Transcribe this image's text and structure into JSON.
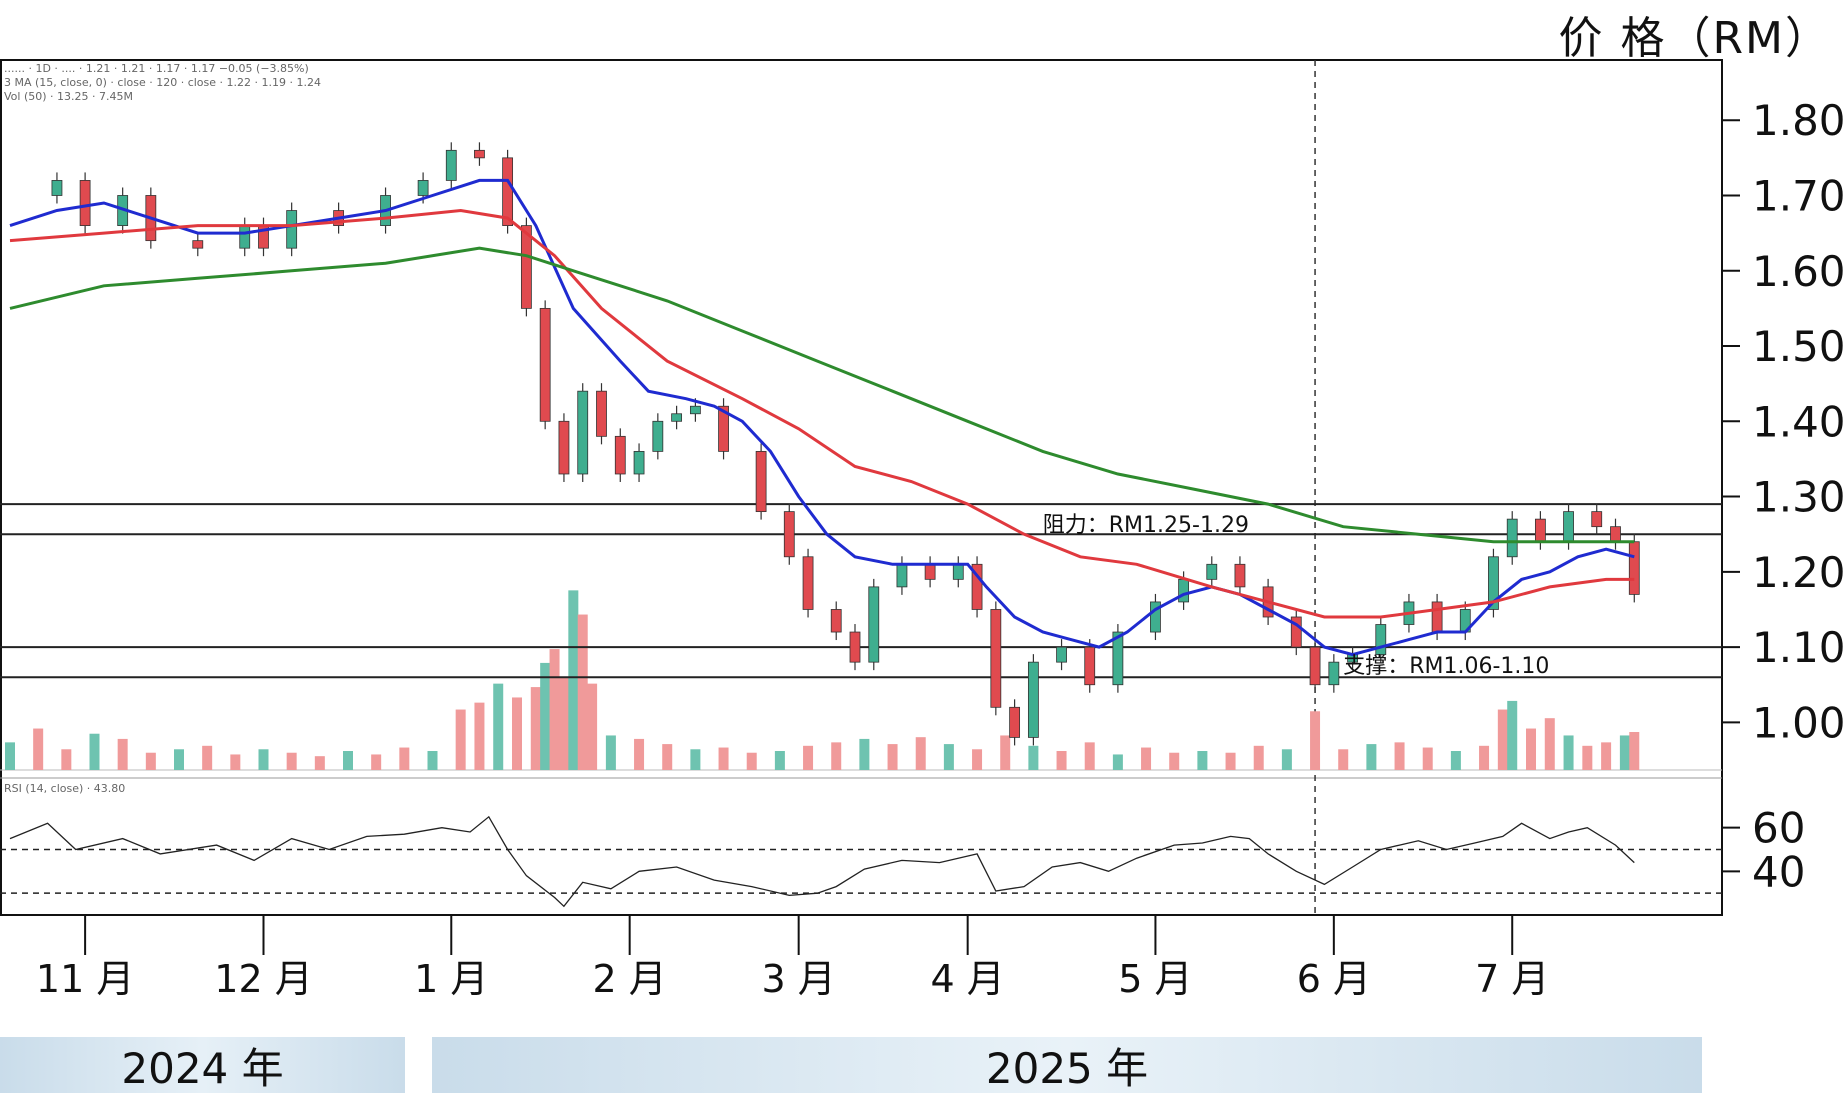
{
  "price_axis_title": "价 格（RM）",
  "years": [
    "2024 年",
    "2025 年"
  ],
  "legend": {
    "line1": "...... · 1D · .... · 1.21 · 1.21 · 1.17 · 1.17 −0.05 (−3.85%)",
    "line2": "3 MA (15, close, 0) · close · 120 · close · 1.22 · 1.19 · 1.24",
    "line3": "Vol (50) · 13.25 · 7.45M",
    "rsi": "RSI (14, close) · 43.80"
  },
  "annotations": {
    "resistance": "阻力：RM1.25-1.29",
    "support": "支撑：RM1.06-1.10"
  },
  "chart_data": {
    "type": "line",
    "title": "",
    "ylabel": "价 格（RM）",
    "xlabel": "",
    "ylim": [
      0.95,
      1.88
    ],
    "y_ticks": [
      "1.80",
      "1.70",
      "1.60",
      "1.50",
      "1.40",
      "1.30",
      "1.20",
      "1.10",
      "1.00"
    ],
    "y_tick_values": [
      1.8,
      1.7,
      1.6,
      1.5,
      1.4,
      1.3,
      1.2,
      1.1,
      1.0
    ],
    "x_ticks": [
      "11 月",
      "12 月",
      "1 月",
      "2 月",
      "3 月",
      "4 月",
      "5 月",
      "6 月",
      "7 月"
    ],
    "horizontal_levels": [
      1.29,
      1.25,
      1.1,
      1.06
    ],
    "x_range": [
      0,
      180
    ],
    "month_x": [
      8,
      27,
      47,
      66,
      84,
      102,
      122,
      141,
      160
    ],
    "close_points": [
      [
        0,
        1.7
      ],
      [
        5,
        1.72
      ],
      [
        8,
        1.66
      ],
      [
        12,
        1.7
      ],
      [
        15,
        1.64
      ],
      [
        20,
        1.63
      ],
      [
        25,
        1.66
      ],
      [
        27,
        1.63
      ],
      [
        30,
        1.68
      ],
      [
        35,
        1.66
      ],
      [
        40,
        1.7
      ],
      [
        44,
        1.72
      ],
      [
        47,
        1.76
      ],
      [
        50,
        1.75
      ],
      [
        53,
        1.66
      ],
      [
        55,
        1.55
      ],
      [
        57,
        1.4
      ],
      [
        59,
        1.33
      ],
      [
        61,
        1.44
      ],
      [
        63,
        1.38
      ],
      [
        65,
        1.33
      ],
      [
        67,
        1.36
      ],
      [
        69,
        1.4
      ],
      [
        71,
        1.41
      ],
      [
        73,
        1.42
      ],
      [
        76,
        1.36
      ],
      [
        80,
        1.28
      ],
      [
        83,
        1.22
      ],
      [
        85,
        1.15
      ],
      [
        88,
        1.12
      ],
      [
        90,
        1.08
      ],
      [
        92,
        1.18
      ],
      [
        95,
        1.21
      ],
      [
        98,
        1.19
      ],
      [
        101,
        1.21
      ],
      [
        103,
        1.15
      ],
      [
        105,
        1.02
      ],
      [
        107,
        0.98
      ],
      [
        109,
        1.08
      ],
      [
        112,
        1.1
      ],
      [
        115,
        1.05
      ],
      [
        118,
        1.12
      ],
      [
        122,
        1.16
      ],
      [
        125,
        1.19
      ],
      [
        128,
        1.21
      ],
      [
        131,
        1.18
      ],
      [
        134,
        1.14
      ],
      [
        137,
        1.1
      ],
      [
        139,
        1.05
      ],
      [
        141,
        1.08
      ],
      [
        143,
        1.09
      ],
      [
        146,
        1.13
      ],
      [
        149,
        1.16
      ],
      [
        152,
        1.12
      ],
      [
        155,
        1.15
      ],
      [
        158,
        1.22
      ],
      [
        160,
        1.27
      ],
      [
        163,
        1.24
      ],
      [
        166,
        1.28
      ],
      [
        169,
        1.26
      ],
      [
        171,
        1.24
      ],
      [
        173,
        1.17
      ]
    ],
    "series": [
      {
        "name": "MA15",
        "color": "#1f2bd0",
        "points": [
          [
            0,
            1.66
          ],
          [
            5,
            1.68
          ],
          [
            10,
            1.69
          ],
          [
            15,
            1.67
          ],
          [
            20,
            1.65
          ],
          [
            25,
            1.65
          ],
          [
            30,
            1.66
          ],
          [
            35,
            1.67
          ],
          [
            40,
            1.68
          ],
          [
            45,
            1.7
          ],
          [
            50,
            1.72
          ],
          [
            53,
            1.72
          ],
          [
            56,
            1.66
          ],
          [
            60,
            1.55
          ],
          [
            65,
            1.48
          ],
          [
            68,
            1.44
          ],
          [
            72,
            1.43
          ],
          [
            75,
            1.42
          ],
          [
            78,
            1.4
          ],
          [
            81,
            1.36
          ],
          [
            84,
            1.3
          ],
          [
            87,
            1.25
          ],
          [
            90,
            1.22
          ],
          [
            94,
            1.21
          ],
          [
            98,
            1.21
          ],
          [
            102,
            1.21
          ],
          [
            104,
            1.18
          ],
          [
            107,
            1.14
          ],
          [
            110,
            1.12
          ],
          [
            113,
            1.11
          ],
          [
            116,
            1.1
          ],
          [
            119,
            1.12
          ],
          [
            122,
            1.15
          ],
          [
            125,
            1.17
          ],
          [
            128,
            1.18
          ],
          [
            131,
            1.17
          ],
          [
            134,
            1.15
          ],
          [
            137,
            1.13
          ],
          [
            140,
            1.1
          ],
          [
            143,
            1.09
          ],
          [
            146,
            1.1
          ],
          [
            149,
            1.11
          ],
          [
            152,
            1.12
          ],
          [
            155,
            1.12
          ],
          [
            158,
            1.16
          ],
          [
            161,
            1.19
          ],
          [
            164,
            1.2
          ],
          [
            167,
            1.22
          ],
          [
            170,
            1.23
          ],
          [
            173,
            1.22
          ]
        ]
      },
      {
        "name": "MA60",
        "color": "#e0393e",
        "points": [
          [
            0,
            1.64
          ],
          [
            10,
            1.65
          ],
          [
            20,
            1.66
          ],
          [
            30,
            1.66
          ],
          [
            40,
            1.67
          ],
          [
            48,
            1.68
          ],
          [
            53,
            1.67
          ],
          [
            58,
            1.62
          ],
          [
            63,
            1.55
          ],
          [
            70,
            1.48
          ],
          [
            78,
            1.43
          ],
          [
            84,
            1.39
          ],
          [
            90,
            1.34
          ],
          [
            96,
            1.32
          ],
          [
            102,
            1.29
          ],
          [
            108,
            1.25
          ],
          [
            114,
            1.22
          ],
          [
            120,
            1.21
          ],
          [
            128,
            1.18
          ],
          [
            134,
            1.16
          ],
          [
            140,
            1.14
          ],
          [
            146,
            1.14
          ],
          [
            152,
            1.15
          ],
          [
            158,
            1.16
          ],
          [
            164,
            1.18
          ],
          [
            170,
            1.19
          ],
          [
            173,
            1.19
          ]
        ]
      },
      {
        "name": "MA120",
        "color": "#2e8b2e",
        "points": [
          [
            0,
            1.55
          ],
          [
            10,
            1.58
          ],
          [
            20,
            1.59
          ],
          [
            30,
            1.6
          ],
          [
            40,
            1.61
          ],
          [
            50,
            1.63
          ],
          [
            55,
            1.62
          ],
          [
            60,
            1.6
          ],
          [
            65,
            1.58
          ],
          [
            70,
            1.56
          ],
          [
            78,
            1.52
          ],
          [
            86,
            1.48
          ],
          [
            94,
            1.44
          ],
          [
            102,
            1.4
          ],
          [
            110,
            1.36
          ],
          [
            118,
            1.33
          ],
          [
            126,
            1.31
          ],
          [
            134,
            1.29
          ],
          [
            142,
            1.26
          ],
          [
            150,
            1.25
          ],
          [
            158,
            1.24
          ],
          [
            166,
            1.24
          ],
          [
            173,
            1.24
          ]
        ]
      }
    ],
    "rsi": {
      "ylim": [
        20,
        80
      ],
      "y_ticks": [
        "60",
        "40"
      ],
      "y_tick_values": [
        60,
        40
      ],
      "levels": [
        50,
        30
      ],
      "points": [
        [
          0,
          55
        ],
        [
          4,
          62
        ],
        [
          7,
          50
        ],
        [
          12,
          55
        ],
        [
          16,
          48
        ],
        [
          22,
          52
        ],
        [
          26,
          45
        ],
        [
          30,
          55
        ],
        [
          34,
          50
        ],
        [
          38,
          56
        ],
        [
          42,
          57
        ],
        [
          46,
          60
        ],
        [
          49,
          58
        ],
        [
          51,
          65
        ],
        [
          53,
          50
        ],
        [
          55,
          38
        ],
        [
          58,
          28
        ],
        [
          59,
          24
        ],
        [
          61,
          35
        ],
        [
          64,
          32
        ],
        [
          67,
          40
        ],
        [
          71,
          42
        ],
        [
          75,
          36
        ],
        [
          79,
          33
        ],
        [
          83,
          29
        ],
        [
          86,
          30
        ],
        [
          88,
          33
        ],
        [
          91,
          41
        ],
        [
          95,
          45
        ],
        [
          99,
          44
        ],
        [
          103,
          48
        ],
        [
          105,
          31
        ],
        [
          108,
          33
        ],
        [
          111,
          42
        ],
        [
          114,
          44
        ],
        [
          117,
          40
        ],
        [
          120,
          46
        ],
        [
          124,
          52
        ],
        [
          127,
          53
        ],
        [
          130,
          56
        ],
        [
          132,
          55
        ],
        [
          134,
          48
        ],
        [
          137,
          40
        ],
        [
          140,
          34
        ],
        [
          143,
          42
        ],
        [
          146,
          50
        ],
        [
          148,
          52
        ],
        [
          150,
          54
        ],
        [
          153,
          50
        ],
        [
          156,
          53
        ],
        [
          159,
          56
        ],
        [
          161,
          62
        ],
        [
          164,
          55
        ],
        [
          166,
          58
        ],
        [
          168,
          60
        ],
        [
          171,
          52
        ],
        [
          173,
          44
        ]
      ]
    },
    "volume": {
      "color_up": "#6ec3b0",
      "color_down": "#f09a9a",
      "bars": [
        [
          0,
          1.6
        ],
        [
          3,
          2.4
        ],
        [
          6,
          1.2
        ],
        [
          9,
          2.1
        ],
        [
          12,
          1.8
        ],
        [
          15,
          1.0
        ],
        [
          18,
          1.2
        ],
        [
          21,
          1.4
        ],
        [
          24,
          0.9
        ],
        [
          27,
          1.2
        ],
        [
          30,
          1.0
        ],
        [
          33,
          0.8
        ],
        [
          36,
          1.1
        ],
        [
          39,
          0.9
        ],
        [
          42,
          1.3
        ],
        [
          45,
          1.1
        ],
        [
          48,
          3.5
        ],
        [
          50,
          3.9
        ],
        [
          52,
          5.0
        ],
        [
          54,
          4.2
        ],
        [
          56,
          4.8
        ],
        [
          57,
          6.2
        ],
        [
          58,
          7.0
        ],
        [
          59,
          5.4
        ],
        [
          60,
          10.4
        ],
        [
          61,
          9.0
        ],
        [
          62,
          5.0
        ],
        [
          64,
          2.0
        ],
        [
          67,
          1.8
        ],
        [
          70,
          1.5
        ],
        [
          73,
          1.2
        ],
        [
          76,
          1.3
        ],
        [
          79,
          1.0
        ],
        [
          82,
          1.1
        ],
        [
          85,
          1.4
        ],
        [
          88,
          1.6
        ],
        [
          91,
          1.8
        ],
        [
          94,
          1.5
        ],
        [
          97,
          1.9
        ],
        [
          100,
          1.5
        ],
        [
          103,
          1.2
        ],
        [
          106,
          2.0
        ],
        [
          109,
          1.4
        ],
        [
          112,
          1.1
        ],
        [
          115,
          1.6
        ],
        [
          118,
          0.9
        ],
        [
          121,
          1.3
        ],
        [
          124,
          1.0
        ],
        [
          127,
          1.1
        ],
        [
          130,
          1.0
        ],
        [
          133,
          1.4
        ],
        [
          136,
          1.2
        ],
        [
          139,
          3.4
        ],
        [
          142,
          1.2
        ],
        [
          145,
          1.5
        ],
        [
          148,
          1.6
        ],
        [
          151,
          1.3
        ],
        [
          154,
          1.1
        ],
        [
          157,
          1.4
        ],
        [
          159,
          3.5
        ],
        [
          160,
          4.0
        ],
        [
          162,
          2.4
        ],
        [
          164,
          3.0
        ],
        [
          166,
          2.0
        ],
        [
          168,
          1.4
        ],
        [
          170,
          1.6
        ],
        [
          172,
          2.0
        ],
        [
          173,
          2.2
        ]
      ]
    }
  }
}
